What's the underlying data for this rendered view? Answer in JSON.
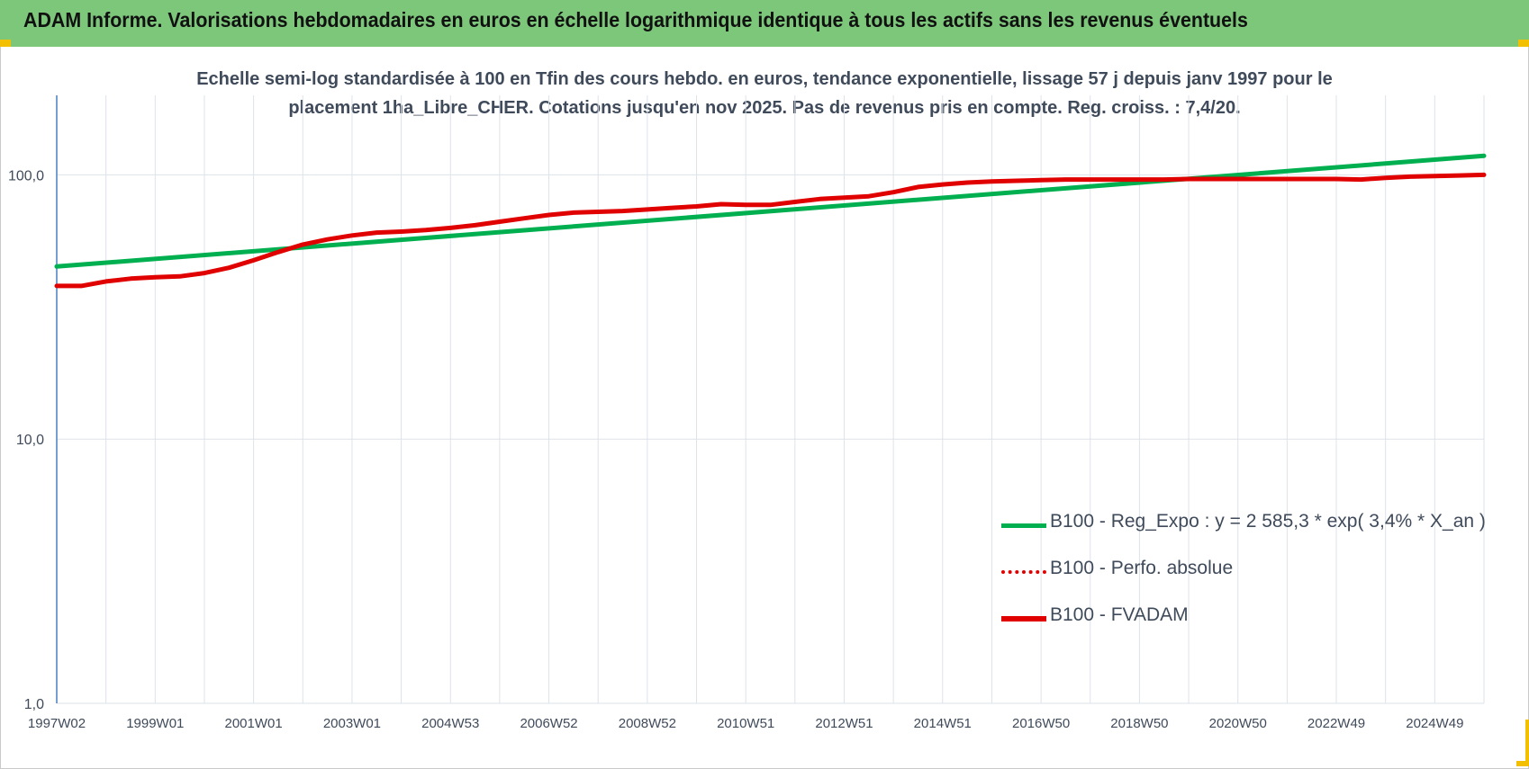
{
  "header": {
    "title": "ADAM Informe. Valorisations hebdomadaires en euros en échelle logarithmique identique à tous les actifs sans les revenus éventuels"
  },
  "chart_data": {
    "type": "line",
    "title_line1": "Echelle semi-log standardisée à 100 en Tfin des cours hebdo. en euros, tendance exponentielle, lissage 57 j depuis janv 1997 pour le",
    "title_line2": "placement 1ha_Libre_CHER. Cotations jusqu'en nov 2025.  Pas de revenus pris en compte. Reg. croiss. : 7,4/20.",
    "y_scale": "log",
    "ylim": [
      1,
      200
    ],
    "xlim": [
      1997.0,
      2026.0
    ],
    "y_ticks": [
      {
        "value": 1,
        "label": "1,0"
      },
      {
        "value": 10,
        "label": "10,0"
      },
      {
        "value": 100,
        "label": "100,0"
      }
    ],
    "x_ticks": [
      {
        "value": 1997.0,
        "label": "1997W02"
      },
      {
        "value": 1999.0,
        "label": "1999W01"
      },
      {
        "value": 2001.0,
        "label": "2001W01"
      },
      {
        "value": 2003.0,
        "label": "2003W01"
      },
      {
        "value": 2005.0,
        "label": "2004W53"
      },
      {
        "value": 2007.0,
        "label": "2006W52"
      },
      {
        "value": 2009.0,
        "label": "2008W52"
      },
      {
        "value": 2011.0,
        "label": "2010W51"
      },
      {
        "value": 2013.0,
        "label": "2012W51"
      },
      {
        "value": 2015.0,
        "label": "2014W51"
      },
      {
        "value": 2017.0,
        "label": "2016W50"
      },
      {
        "value": 2019.0,
        "label": "2018W50"
      },
      {
        "value": 2021.0,
        "label": "2020W50"
      },
      {
        "value": 2023.0,
        "label": "2022W49"
      },
      {
        "value": 2025.0,
        "label": "2024W49"
      }
    ],
    "grid": true,
    "legend_position": "bottom-right",
    "series": [
      {
        "name": "B100 - Reg_Expo : y = 2 585,3 * exp( 3,4% *  X_an )",
        "color": "#00b050",
        "style": "solid",
        "points": [
          [
            1997.0,
            45.0
          ],
          [
            2026.0,
            118.0
          ]
        ]
      },
      {
        "name": "B100 - Perfo. absolue",
        "color": "#e00000",
        "style": "dotted",
        "points": []
      },
      {
        "name": "B100 - FVADAM",
        "color": "#e00000",
        "style": "solid",
        "points": [
          [
            1997.0,
            38.0
          ],
          [
            1997.5,
            38.0
          ],
          [
            1998.0,
            39.5
          ],
          [
            1998.5,
            40.5
          ],
          [
            1999.0,
            41.0
          ],
          [
            1999.5,
            41.3
          ],
          [
            2000.0,
            42.5
          ],
          [
            2000.5,
            44.5
          ],
          [
            2001.0,
            47.5
          ],
          [
            2001.5,
            51.0
          ],
          [
            2002.0,
            54.5
          ],
          [
            2002.5,
            57.0
          ],
          [
            2003.0,
            59.0
          ],
          [
            2003.5,
            60.5
          ],
          [
            2004.0,
            61.0
          ],
          [
            2004.5,
            61.8
          ],
          [
            2005.0,
            63.0
          ],
          [
            2005.5,
            64.5
          ],
          [
            2006.0,
            66.5
          ],
          [
            2006.5,
            68.5
          ],
          [
            2007.0,
            70.5
          ],
          [
            2007.5,
            72.0
          ],
          [
            2008.0,
            72.5
          ],
          [
            2008.5,
            73.0
          ],
          [
            2009.0,
            74.0
          ],
          [
            2009.5,
            75.0
          ],
          [
            2010.0,
            76.0
          ],
          [
            2010.5,
            77.5
          ],
          [
            2011.0,
            77.0
          ],
          [
            2011.5,
            77.0
          ],
          [
            2012.0,
            79.0
          ],
          [
            2012.5,
            81.0
          ],
          [
            2013.0,
            82.0
          ],
          [
            2013.5,
            83.0
          ],
          [
            2014.0,
            86.0
          ],
          [
            2014.5,
            90.0
          ],
          [
            2015.0,
            92.0
          ],
          [
            2015.5,
            93.5
          ],
          [
            2016.0,
            94.5
          ],
          [
            2016.5,
            95.0
          ],
          [
            2017.0,
            95.5
          ],
          [
            2017.5,
            96.0
          ],
          [
            2018.0,
            96.0
          ],
          [
            2018.5,
            96.0
          ],
          [
            2019.0,
            96.0
          ],
          [
            2019.5,
            96.0
          ],
          [
            2020.0,
            96.5
          ],
          [
            2020.5,
            96.5
          ],
          [
            2021.0,
            96.5
          ],
          [
            2021.5,
            96.5
          ],
          [
            2022.0,
            96.5
          ],
          [
            2022.5,
            96.5
          ],
          [
            2023.0,
            96.5
          ],
          [
            2023.5,
            96.0
          ],
          [
            2024.0,
            97.5
          ],
          [
            2024.5,
            98.5
          ],
          [
            2025.0,
            99.0
          ],
          [
            2025.5,
            99.5
          ],
          [
            2026.0,
            100.0
          ]
        ]
      }
    ]
  }
}
